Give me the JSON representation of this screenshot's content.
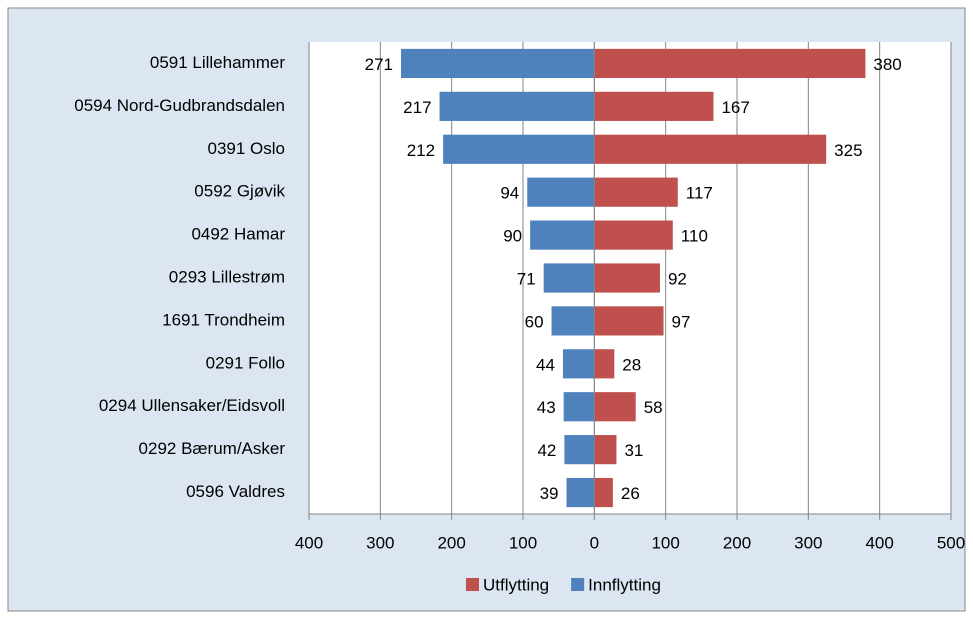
{
  "chart_data": {
    "type": "butterfly-bar",
    "categories": [
      "0591 Lillehammer",
      "0594 Nord-Gudbrandsdalen",
      "0391 Oslo",
      "0592 Gjøvik",
      "0492 Hamar",
      "0293 Lillestrøm",
      "1691 Trondheim",
      "0291 Follo",
      "0294 Ullensaker/Eidsvoll",
      "0292 Bærum/Asker",
      "0596 Valdres"
    ],
    "series": [
      {
        "name": "Utflytting",
        "color": "#c0504d",
        "values": [
          380,
          167,
          325,
          117,
          110,
          92,
          97,
          28,
          58,
          31,
          26
        ]
      },
      {
        "name": "Innflytting",
        "color": "#4f81bd",
        "values": [
          -271,
          -217,
          -212,
          -94,
          -90,
          -71,
          -60,
          -44,
          -43,
          -42,
          -39
        ],
        "value_labels": [
          "271",
          "217",
          "212",
          "94",
          "90",
          "71",
          "60",
          "44",
          "43",
          "42",
          "39"
        ]
      }
    ],
    "xlim": [
      -400,
      500
    ],
    "xticks": [
      {
        "value": -400,
        "label": "400"
      },
      {
        "value": -300,
        "label": "300"
      },
      {
        "value": -200,
        "label": "200"
      },
      {
        "value": -100,
        "label": "100"
      },
      0,
      100,
      200,
      300,
      400,
      500
    ],
    "grid": true,
    "legend": "bottom"
  }
}
